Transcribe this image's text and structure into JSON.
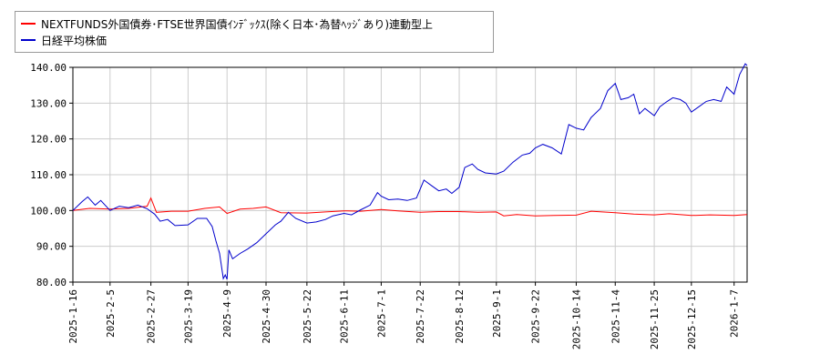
{
  "chart_data": {
    "type": "line",
    "y_ticks": [
      "80.00",
      "90.00",
      "100.00",
      "110.00",
      "120.00",
      "130.00",
      "140.00"
    ],
    "ylim": [
      80,
      140
    ],
    "x_ticks": [
      "2025-1-16",
      "2025-2-5",
      "2025-2-27",
      "2025-3-19",
      "2025-4-9",
      "2025-4-30",
      "2025-5-22",
      "2025-6-11",
      "2025-7-1",
      "2025-7-22",
      "2025-8-12",
      "2025-9-1",
      "2025-9-22",
      "2025-10-14",
      "2025-11-4",
      "2025-11-25",
      "2025-12-15",
      "2026-1-7"
    ],
    "grid": true,
    "legend_position": "top-left",
    "series": [
      {
        "name": "NEXTFUNDS外国債券･FTSE世界国債ｲﾝﾃﾞｯｸｽ(除く日本･為替ﾍｯｼﾞあり)連動型上",
        "color": "#ff0000",
        "points": [
          [
            "2025-01-16",
            100.0
          ],
          [
            "2025-01-25",
            100.6
          ],
          [
            "2025-02-05",
            100.4
          ],
          [
            "2025-02-15",
            100.6
          ],
          [
            "2025-02-25",
            101.2
          ],
          [
            "2025-02-27",
            103.5
          ],
          [
            "2025-03-02",
            99.5
          ],
          [
            "2025-03-10",
            99.8
          ],
          [
            "2025-03-19",
            99.8
          ],
          [
            "2025-03-28",
            100.6
          ],
          [
            "2025-04-05",
            101.0
          ],
          [
            "2025-04-09",
            99.2
          ],
          [
            "2025-04-16",
            100.4
          ],
          [
            "2025-04-23",
            100.6
          ],
          [
            "2025-04-30",
            101.0
          ],
          [
            "2025-05-08",
            99.4
          ],
          [
            "2025-05-22",
            99.3
          ],
          [
            "2025-06-01",
            99.6
          ],
          [
            "2025-06-11",
            99.9
          ],
          [
            "2025-06-20",
            99.8
          ],
          [
            "2025-07-01",
            100.3
          ],
          [
            "2025-07-10",
            99.9
          ],
          [
            "2025-07-22",
            99.5
          ],
          [
            "2025-08-01",
            99.7
          ],
          [
            "2025-08-12",
            99.7
          ],
          [
            "2025-08-22",
            99.5
          ],
          [
            "2025-09-01",
            99.6
          ],
          [
            "2025-09-05",
            98.5
          ],
          [
            "2025-09-12",
            98.9
          ],
          [
            "2025-09-22",
            98.5
          ],
          [
            "2025-10-02",
            98.6
          ],
          [
            "2025-10-14",
            98.7
          ],
          [
            "2025-10-22",
            99.8
          ],
          [
            "2025-11-04",
            99.4
          ],
          [
            "2025-11-14",
            99.0
          ],
          [
            "2025-11-25",
            98.8
          ],
          [
            "2025-12-03",
            99.1
          ],
          [
            "2025-12-15",
            98.6
          ],
          [
            "2025-12-25",
            98.8
          ],
          [
            "2026-01-07",
            98.6
          ],
          [
            "2026-01-14",
            98.9
          ]
        ]
      },
      {
        "name": "日経平均株価",
        "color": "#0000cc",
        "points": [
          [
            "2025-01-16",
            100.0
          ],
          [
            "2025-01-21",
            102.5
          ],
          [
            "2025-01-24",
            103.8
          ],
          [
            "2025-01-28",
            101.5
          ],
          [
            "2025-01-31",
            102.8
          ],
          [
            "2025-02-05",
            100.0
          ],
          [
            "2025-02-10",
            101.2
          ],
          [
            "2025-02-15",
            100.8
          ],
          [
            "2025-02-20",
            101.5
          ],
          [
            "2025-02-25",
            100.5
          ],
          [
            "2025-03-01",
            99.0
          ],
          [
            "2025-03-04",
            97.0
          ],
          [
            "2025-03-08",
            97.5
          ],
          [
            "2025-03-12",
            95.8
          ],
          [
            "2025-03-19",
            96.0
          ],
          [
            "2025-03-24",
            97.8
          ],
          [
            "2025-03-29",
            97.8
          ],
          [
            "2025-04-01",
            95.5
          ],
          [
            "2025-04-03",
            91.5
          ],
          [
            "2025-04-05",
            88.0
          ],
          [
            "2025-04-07",
            81.0
          ],
          [
            "2025-04-08",
            82.0
          ],
          [
            "2025-04-09",
            80.8
          ],
          [
            "2025-04-10",
            89.0
          ],
          [
            "2025-04-12",
            86.5
          ],
          [
            "2025-04-16",
            88.0
          ],
          [
            "2025-04-20",
            89.2
          ],
          [
            "2025-04-25",
            91.0
          ],
          [
            "2025-04-30",
            93.5
          ],
          [
            "2025-05-05",
            96.0
          ],
          [
            "2025-05-08",
            97.0
          ],
          [
            "2025-05-12",
            99.5
          ],
          [
            "2025-05-16",
            97.8
          ],
          [
            "2025-05-22",
            96.5
          ],
          [
            "2025-05-27",
            96.8
          ],
          [
            "2025-06-01",
            97.5
          ],
          [
            "2025-06-05",
            98.5
          ],
          [
            "2025-06-11",
            99.2
          ],
          [
            "2025-06-15",
            98.8
          ],
          [
            "2025-06-20",
            100.2
          ],
          [
            "2025-06-25",
            101.5
          ],
          [
            "2025-06-29",
            105.0
          ],
          [
            "2025-07-01",
            104.0
          ],
          [
            "2025-07-05",
            103.0
          ],
          [
            "2025-07-10",
            103.2
          ],
          [
            "2025-07-15",
            102.8
          ],
          [
            "2025-07-20",
            103.5
          ],
          [
            "2025-07-24",
            108.5
          ],
          [
            "2025-07-28",
            107.0
          ],
          [
            "2025-08-01",
            105.5
          ],
          [
            "2025-08-05",
            106.0
          ],
          [
            "2025-08-08",
            104.8
          ],
          [
            "2025-08-12",
            106.5
          ],
          [
            "2025-08-15",
            112.0
          ],
          [
            "2025-08-19",
            113.0
          ],
          [
            "2025-08-22",
            111.5
          ],
          [
            "2025-08-26",
            110.5
          ],
          [
            "2025-09-01",
            110.2
          ],
          [
            "2025-09-05",
            111.0
          ],
          [
            "2025-09-10",
            113.5
          ],
          [
            "2025-09-15",
            115.5
          ],
          [
            "2025-09-19",
            116.0
          ],
          [
            "2025-09-22",
            117.5
          ],
          [
            "2025-09-26",
            118.5
          ],
          [
            "2025-10-01",
            117.5
          ],
          [
            "2025-10-06",
            115.8
          ],
          [
            "2025-10-10",
            124.0
          ],
          [
            "2025-10-14",
            123.0
          ],
          [
            "2025-10-18",
            122.5
          ],
          [
            "2025-10-22",
            126.0
          ],
          [
            "2025-10-27",
            128.5
          ],
          [
            "2025-10-31",
            133.5
          ],
          [
            "2025-11-04",
            135.5
          ],
          [
            "2025-11-07",
            131.0
          ],
          [
            "2025-11-11",
            131.5
          ],
          [
            "2025-11-14",
            132.5
          ],
          [
            "2025-11-17",
            127.0
          ],
          [
            "2025-11-20",
            128.5
          ],
          [
            "2025-11-25",
            126.5
          ],
          [
            "2025-11-28",
            129.0
          ],
          [
            "2025-12-02",
            130.5
          ],
          [
            "2025-12-05",
            131.5
          ],
          [
            "2025-12-09",
            131.0
          ],
          [
            "2025-12-12",
            130.0
          ],
          [
            "2025-12-15",
            127.5
          ],
          [
            "2025-12-19",
            129.0
          ],
          [
            "2025-12-23",
            130.5
          ],
          [
            "2025-12-27",
            131.0
          ],
          [
            "2025-12-31",
            130.5
          ],
          [
            "2026-01-03",
            134.5
          ],
          [
            "2026-01-07",
            132.5
          ],
          [
            "2026-01-10",
            138.0
          ],
          [
            "2026-01-13",
            141.0
          ],
          [
            "2026-01-14",
            140.5
          ]
        ]
      }
    ]
  }
}
